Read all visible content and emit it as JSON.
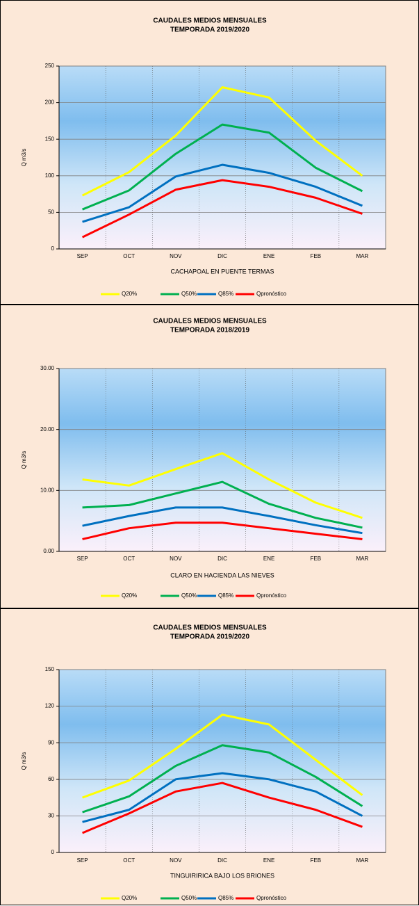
{
  "chart_data": [
    {
      "type": "line",
      "title": "CAUDALES MEDIOS MENSUALES",
      "subtitle": "TEMPORADA 2019/2020",
      "ylabel": "Q m3/s",
      "xlabel": "CACHAPOAL EN PUENTE TERMAS",
      "categories": [
        "SEP",
        "OCT",
        "NOV",
        "DIC",
        "ENE",
        "FEB",
        "MAR"
      ],
      "ylim": [
        0,
        250
      ],
      "yticks": [
        0,
        50,
        100,
        150,
        200,
        250
      ],
      "grid": true,
      "legend": "bottom",
      "series": [
        {
          "name": "Q20%",
          "color": "#ffff00",
          "values": [
            73,
            105,
            155,
            221,
            207,
            148,
            100
          ]
        },
        {
          "name": "Q50%",
          "color": "#00b050",
          "values": [
            54,
            80,
            130,
            170,
            159,
            111,
            79
          ]
        },
        {
          "name": "Q85%",
          "color": "#0070c0",
          "values": [
            37,
            57,
            99,
            115,
            104,
            85,
            59
          ]
        },
        {
          "name": "Qpronóstico",
          "color": "#ff0000",
          "values": [
            16,
            47,
            81,
            94,
            85,
            70,
            48
          ]
        }
      ]
    },
    {
      "type": "line",
      "title": "CAUDALES MEDIOS MENSUALES",
      "subtitle": "TEMPORADA 2018/2019",
      "ylabel": "Q m3/s",
      "xlabel": "CLARO EN HACIENDA LAS NIEVES",
      "categories": [
        "SEP",
        "OCT",
        "NOV",
        "DIC",
        "ENE",
        "FEB",
        "MAR"
      ],
      "ylim": [
        0,
        30
      ],
      "yticks": [
        {
          "value": 0,
          "label": "0.00"
        },
        {
          "value": 10,
          "label": "10.00"
        },
        {
          "value": 20,
          "label": "20.00"
        },
        {
          "value": 30,
          "label": "30.00"
        }
      ],
      "grid": true,
      "legend": "bottom",
      "series": [
        {
          "name": "Q20%",
          "color": "#ffff00",
          "values": [
            11.8,
            10.8,
            13.5,
            16.1,
            11.8,
            8,
            5.5
          ]
        },
        {
          "name": "Q50%",
          "color": "#00b050",
          "values": [
            7.2,
            7.6,
            9.5,
            11.4,
            7.8,
            5.5,
            3.9
          ]
        },
        {
          "name": "Q85%",
          "color": "#0070c0",
          "values": [
            4.2,
            5.8,
            7.2,
            7.2,
            5.8,
            4.3,
            3
          ]
        },
        {
          "name": "Qpronóstico",
          "color": "#ff0000",
          "values": [
            2,
            3.8,
            4.7,
            4.7,
            3.8,
            2.9,
            2
          ]
        }
      ]
    },
    {
      "type": "line",
      "title": "CAUDALES MEDIOS MENSUALES",
      "subtitle": "TEMPORADA 2019/2020",
      "ylabel": "Q m3/s",
      "xlabel": "TINGUIRIRICA BAJO LOS BRIONES",
      "categories": [
        "SEP",
        "OCT",
        "NOV",
        "DIC",
        "ENE",
        "FEB",
        "MAR"
      ],
      "ylim": [
        0,
        150
      ],
      "yticks": [
        0,
        30,
        60,
        90,
        120,
        150
      ],
      "grid": true,
      "legend": "bottom",
      "series": [
        {
          "name": "Q20%",
          "color": "#ffff00",
          "values": [
            45,
            59,
            85,
            113,
            105,
            76,
            47
          ]
        },
        {
          "name": "Q50%",
          "color": "#00b050",
          "values": [
            33,
            46,
            71,
            88,
            82,
            62,
            38
          ]
        },
        {
          "name": "Q85%",
          "color": "#0070c0",
          "values": [
            25,
            35,
            60,
            65,
            60,
            50,
            30
          ]
        },
        {
          "name": "Qpronóstico",
          "color": "#ff0000",
          "values": [
            16,
            32,
            50,
            57,
            45,
            35,
            21
          ]
        }
      ]
    }
  ]
}
